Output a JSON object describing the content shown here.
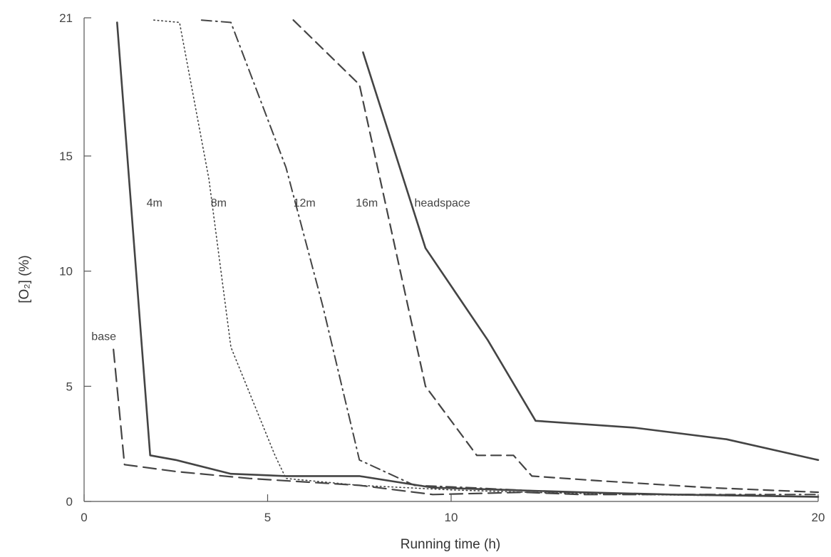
{
  "chart_data": {
    "type": "line",
    "title": "",
    "xlabel": "Running time (h)",
    "ylabel": "[O₂] (%)",
    "xlim": [
      0,
      20
    ],
    "ylim": [
      0,
      21
    ],
    "xticks": [
      0,
      5,
      10,
      20
    ],
    "xtick_labels": [
      "0",
      "5",
      "10",
      "20"
    ],
    "yticks": [
      0,
      5,
      10,
      15,
      21
    ],
    "ytick_labels": [
      "0",
      "5",
      "10",
      "15",
      "21"
    ],
    "grid": false,
    "legend": "none",
    "colors": {
      "ink": "#444444",
      "axis": "#555555",
      "background": "#ffffff"
    },
    "series": [
      {
        "name": "base",
        "style": "longdash",
        "label": "base",
        "x": [
          0.8,
          1.1,
          2.5,
          4.5,
          7.5,
          9.5,
          12.0,
          13.5,
          15.0,
          17.0,
          20.0
        ],
        "y": [
          6.6,
          1.6,
          1.3,
          1.0,
          0.7,
          0.3,
          0.4,
          0.3,
          0.3,
          0.3,
          0.2
        ]
      },
      {
        "name": "4m",
        "style": "solid",
        "label": "4m",
        "x": [
          0.9,
          1.8,
          2.5,
          4.0,
          5.5,
          7.5,
          9.5,
          11.5,
          13.5,
          16.0,
          20.0
        ],
        "y": [
          20.8,
          2.0,
          1.8,
          1.2,
          1.1,
          1.1,
          0.6,
          0.5,
          0.4,
          0.3,
          0.2
        ]
      },
      {
        "name": "8m",
        "style": "dotted",
        "label": "8m",
        "x": [
          1.9,
          2.6,
          3.4,
          4.0,
          5.2,
          5.5,
          7.5,
          10.0,
          12.0,
          15.0,
          20.0
        ],
        "y": [
          20.9,
          20.8,
          14.0,
          6.7,
          2.0,
          1.0,
          0.7,
          0.5,
          0.4,
          0.3,
          0.2
        ]
      },
      {
        "name": "12m",
        "style": "dashdot",
        "label": "12m",
        "x": [
          3.2,
          4.0,
          5.5,
          6.5,
          7.5,
          9.0,
          10.5,
          13.0,
          16.0,
          20.0
        ],
        "y": [
          20.9,
          20.8,
          14.5,
          8.5,
          1.8,
          0.7,
          0.6,
          0.4,
          0.3,
          0.3
        ]
      },
      {
        "name": "16m",
        "style": "dashed",
        "label": "16m",
        "x": [
          5.7,
          7.5,
          9.3,
          10.7,
          11.2,
          11.7,
          12.2,
          14.0,
          17.0,
          20.0
        ],
        "y": [
          20.9,
          18.1,
          5.0,
          2.0,
          2.0,
          2.0,
          1.1,
          0.9,
          0.6,
          0.4
        ]
      },
      {
        "name": "headspace",
        "style": "solid",
        "label": "headspace",
        "x": [
          7.6,
          9.3,
          11.0,
          12.3,
          15.0,
          17.5,
          20.0
        ],
        "y": [
          19.5,
          11.0,
          7.0,
          3.5,
          3.2,
          2.7,
          1.8
        ]
      }
    ]
  }
}
